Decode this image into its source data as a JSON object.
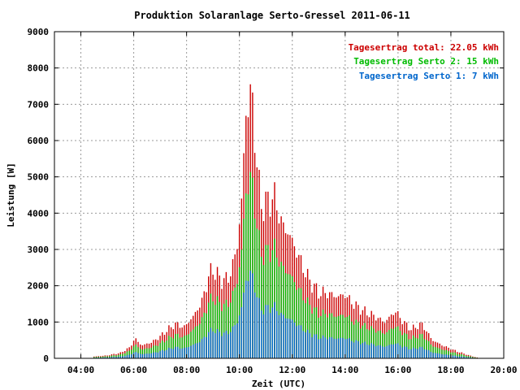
{
  "chart_data": {
    "type": "bar",
    "title": "Produktion Solaranlage Serto-Gressel 2011-06-11",
    "xlabel": "Zeit (UTC)",
    "ylabel": "Leistung [W]",
    "xlim": [
      3.0,
      20.0
    ],
    "ylim": [
      0,
      9000
    ],
    "grid": true,
    "legend_position": "top-right",
    "x_ticks": [
      {
        "value": 4,
        "label": "04:00"
      },
      {
        "value": 6,
        "label": "06:00"
      },
      {
        "value": 8,
        "label": "08:00"
      },
      {
        "value": 10,
        "label": "10:00"
      },
      {
        "value": 12,
        "label": "12:00"
      },
      {
        "value": 14,
        "label": "14:00"
      },
      {
        "value": 16,
        "label": "16:00"
      },
      {
        "value": 18,
        "label": "18:00"
      },
      {
        "value": 20,
        "label": "20:00"
      }
    ],
    "y_ticks": [
      0,
      1000,
      2000,
      3000,
      4000,
      5000,
      6000,
      7000,
      8000,
      9000
    ],
    "legend": [
      {
        "label": "Tagesertrag total: 22.05 kWh",
        "color": "#cc0000"
      },
      {
        "label": "Tagesertrag Serto 2: 15 kWh",
        "color": "#00bb00"
      },
      {
        "label": "Tagesertrag Serto 1: 7 kWh",
        "color": "#0066cc"
      }
    ],
    "colors": {
      "total": "#cc0000",
      "serto2": "#00bb00",
      "serto1": "#0066cc",
      "grid": "#999999"
    },
    "x_step_hours": 0.0833,
    "series_profile": [
      {
        "x": 4.5,
        "total": 50
      },
      {
        "x": 5.0,
        "total": 80
      },
      {
        "x": 5.5,
        "total": 150
      },
      {
        "x": 5.85,
        "total": 300
      },
      {
        "x": 6.05,
        "total": 550
      },
      {
        "x": 6.3,
        "total": 350
      },
      {
        "x": 6.7,
        "total": 450
      },
      {
        "x": 7.0,
        "total": 600
      },
      {
        "x": 7.3,
        "total": 800
      },
      {
        "x": 7.6,
        "total": 950
      },
      {
        "x": 7.9,
        "total": 850
      },
      {
        "x": 8.3,
        "total": 1200
      },
      {
        "x": 8.6,
        "total": 1600
      },
      {
        "x": 8.85,
        "total": 2300
      },
      {
        "x": 9.0,
        "total": 2450
      },
      {
        "x": 9.3,
        "total": 2150
      },
      {
        "x": 9.6,
        "total": 2200
      },
      {
        "x": 9.9,
        "total": 3000
      },
      {
        "x": 10.1,
        "total": 4500
      },
      {
        "x": 10.25,
        "total": 6800
      },
      {
        "x": 10.45,
        "total": 7350
      },
      {
        "x": 10.6,
        "total": 6000
      },
      {
        "x": 10.8,
        "total": 4200
      },
      {
        "x": 11.1,
        "total": 4300
      },
      {
        "x": 11.3,
        "total": 4500
      },
      {
        "x": 11.6,
        "total": 3700
      },
      {
        "x": 11.9,
        "total": 3400
      },
      {
        "x": 12.3,
        "total": 2700
      },
      {
        "x": 12.6,
        "total": 2200
      },
      {
        "x": 13.0,
        "total": 1800
      },
      {
        "x": 13.3,
        "total": 1800
      },
      {
        "x": 13.7,
        "total": 1700
      },
      {
        "x": 14.0,
        "total": 1750
      },
      {
        "x": 14.3,
        "total": 1500
      },
      {
        "x": 14.7,
        "total": 1300
      },
      {
        "x": 15.0,
        "total": 1200
      },
      {
        "x": 15.5,
        "total": 1000
      },
      {
        "x": 15.9,
        "total": 1300
      },
      {
        "x": 16.2,
        "total": 1000
      },
      {
        "x": 16.5,
        "total": 800
      },
      {
        "x": 16.9,
        "total": 950
      },
      {
        "x": 17.3,
        "total": 500
      },
      {
        "x": 17.7,
        "total": 350
      },
      {
        "x": 18.2,
        "total": 200
      },
      {
        "x": 18.7,
        "total": 80
      },
      {
        "x": 19.0,
        "total": 20
      }
    ],
    "serto2_share": 0.68,
    "serto1_share": 0.32
  }
}
